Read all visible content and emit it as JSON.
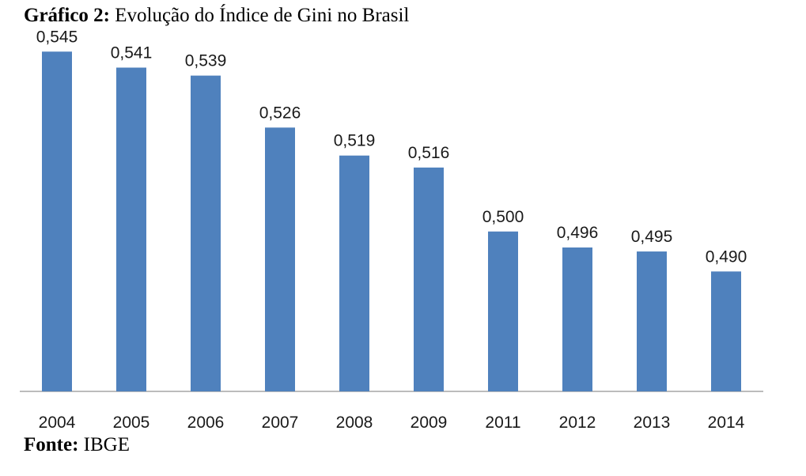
{
  "figure": {
    "title_prefix": "Gráfico 2:",
    "title_text": "Evolução do Índice de Gini no Brasil",
    "source_prefix": "Fonte:",
    "source_text": "IBGE"
  },
  "chart_data": {
    "type": "bar",
    "categories": [
      "2004",
      "2005",
      "2006",
      "2007",
      "2008",
      "2009",
      "2011",
      "2012",
      "2013",
      "2014"
    ],
    "values": [
      0.545,
      0.541,
      0.539,
      0.526,
      0.519,
      0.516,
      0.5,
      0.496,
      0.495,
      0.49
    ],
    "value_labels": [
      "0,545",
      "0,541",
      "0,539",
      "0,526",
      "0,519",
      "0,516",
      "0,500",
      "0,496",
      "0,495",
      "0,490"
    ],
    "title": "Evolução do Índice de Gini no Brasil",
    "xlabel": "",
    "ylabel": "",
    "ylim": [
      0.46,
      0.55
    ],
    "grid": false,
    "legend": "none",
    "bar_color": "#4f81bd",
    "axis_color": "#a6a6a6"
  }
}
